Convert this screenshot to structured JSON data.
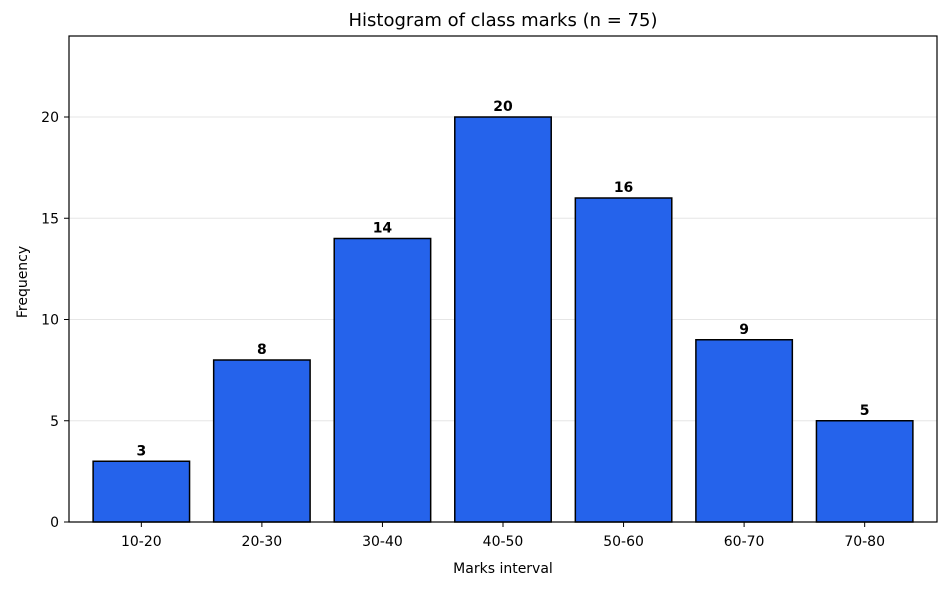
{
  "chart_data": {
    "type": "bar",
    "title": "Histogram of class marks (n = 75)",
    "xlabel": "Marks interval",
    "ylabel": "Frequency",
    "categories": [
      "10-20",
      "20-30",
      "30-40",
      "40-50",
      "50-60",
      "60-70",
      "70-80"
    ],
    "values": [
      3,
      8,
      14,
      20,
      16,
      9,
      5
    ],
    "ylim": [
      0,
      24
    ],
    "yticks": [
      0,
      5,
      10,
      15,
      20
    ],
    "ytick_labels": [
      "0",
      "5",
      "10",
      "15",
      "20"
    ],
    "grid": "horizontal",
    "bar_color": "#2563eb",
    "bar_edge_color": "#000000"
  }
}
